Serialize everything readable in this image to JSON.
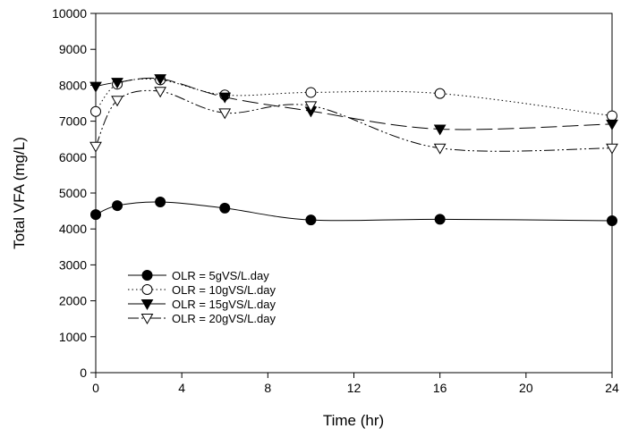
{
  "chart_data": {
    "type": "line",
    "title": "",
    "xlabel": "Time (hr)",
    "ylabel": "Total VFA (mg/L)",
    "xlim": [
      0,
      24
    ],
    "ylim": [
      0,
      10000
    ],
    "xticks": [
      0,
      4,
      8,
      12,
      16,
      20,
      24
    ],
    "yticks": [
      0,
      1000,
      2000,
      3000,
      4000,
      5000,
      6000,
      7000,
      8000,
      9000,
      10000
    ],
    "grid": false,
    "legend_position": "lower-left",
    "series": [
      {
        "name": "OLR = 5gVS/L.day",
        "marker": "filled-circle",
        "line_style": "solid",
        "x": [
          0,
          1,
          3,
          6,
          10,
          16,
          24
        ],
        "y": [
          4400,
          4650,
          4750,
          4580,
          4250,
          4270,
          4230
        ]
      },
      {
        "name": "OLR = 10gVS/L.day",
        "marker": "open-circle",
        "line_style": "dotted",
        "x": [
          0,
          1,
          3,
          6,
          10,
          16,
          24
        ],
        "y": [
          7270,
          8030,
          8150,
          7730,
          7800,
          7770,
          7150
        ]
      },
      {
        "name": "OLR = 15gVS/L.day",
        "marker": "filled-triangle-down",
        "line_style": "long-dash",
        "x": [
          0,
          1,
          3,
          6,
          10,
          16,
          24
        ],
        "y": [
          7970,
          8080,
          8180,
          7670,
          7280,
          6780,
          6920
        ]
      },
      {
        "name": "OLR = 20gVS/L.day",
        "marker": "open-triangle-down",
        "line_style": "dash-dot-dot",
        "x": [
          0,
          1,
          3,
          6,
          10,
          16,
          24
        ],
        "y": [
          6300,
          7580,
          7830,
          7230,
          7430,
          6250,
          6250
        ]
      }
    ]
  }
}
